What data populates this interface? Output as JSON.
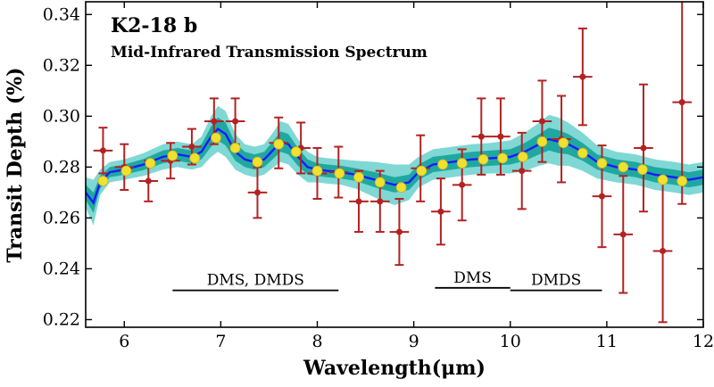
{
  "chart_data": {
    "type": "scatter",
    "title": "K2-18 b",
    "subtitle": "Mid-Infrared Transmission Spectrum",
    "xlabel": "Wavelength(μm)",
    "ylabel": "Transit Depth (%)",
    "xlim": [
      5.6,
      12.0
    ],
    "ylim": [
      0.217,
      0.345
    ],
    "x_ticks": [
      6,
      7,
      8,
      9,
      10,
      11,
      12
    ],
    "x_tick_labels": [
      "6",
      "7",
      "8",
      "9",
      "10",
      "11",
      "12"
    ],
    "y_ticks": [
      0.22,
      0.24,
      0.26,
      0.28,
      0.3,
      0.32,
      0.34
    ],
    "y_tick_labels": [
      "0.22",
      "0.24",
      "0.26",
      "0.28",
      "0.30",
      "0.32",
      "0.34"
    ],
    "grid": false,
    "colors": {
      "observed": "#b22222",
      "binned_model": "#f0e030",
      "model_line": "#1a1aff",
      "band_1sigma": "#20a8a0",
      "band_2sigma": "#7fd8d4"
    },
    "observed": [
      {
        "x": 5.78,
        "y": 0.2865,
        "xerr": 0.1,
        "yerr": 0.009
      },
      {
        "x": 6.0,
        "y": 0.28,
        "xerr": 0.1,
        "yerr": 0.009
      },
      {
        "x": 6.25,
        "y": 0.2745,
        "xerr": 0.1,
        "yerr": 0.008
      },
      {
        "x": 6.48,
        "y": 0.2825,
        "xerr": 0.1,
        "yerr": 0.007
      },
      {
        "x": 6.7,
        "y": 0.288,
        "xerr": 0.1,
        "yerr": 0.007
      },
      {
        "x": 6.93,
        "y": 0.298,
        "xerr": 0.1,
        "yerr": 0.009
      },
      {
        "x": 7.15,
        "y": 0.298,
        "xerr": 0.1,
        "yerr": 0.009
      },
      {
        "x": 7.38,
        "y": 0.27,
        "xerr": 0.1,
        "yerr": 0.01
      },
      {
        "x": 7.6,
        "y": 0.2895,
        "xerr": 0.1,
        "yerr": 0.01
      },
      {
        "x": 7.83,
        "y": 0.2875,
        "xerr": 0.1,
        "yerr": 0.01
      },
      {
        "x": 8.0,
        "y": 0.2775,
        "xerr": 0.1,
        "yerr": 0.01
      },
      {
        "x": 8.22,
        "y": 0.278,
        "xerr": 0.1,
        "yerr": 0.01
      },
      {
        "x": 8.43,
        "y": 0.2665,
        "xerr": 0.1,
        "yerr": 0.012
      },
      {
        "x": 8.65,
        "y": 0.2665,
        "xerr": 0.1,
        "yerr": 0.012
      },
      {
        "x": 8.85,
        "y": 0.2545,
        "xerr": 0.1,
        "yerr": 0.013
      },
      {
        "x": 9.07,
        "y": 0.2795,
        "xerr": 0.1,
        "yerr": 0.013
      },
      {
        "x": 9.28,
        "y": 0.2625,
        "xerr": 0.1,
        "yerr": 0.013
      },
      {
        "x": 9.5,
        "y": 0.273,
        "xerr": 0.1,
        "yerr": 0.014
      },
      {
        "x": 9.7,
        "y": 0.292,
        "xerr": 0.1,
        "yerr": 0.015
      },
      {
        "x": 9.9,
        "y": 0.292,
        "xerr": 0.1,
        "yerr": 0.015
      },
      {
        "x": 10.12,
        "y": 0.2785,
        "xerr": 0.1,
        "yerr": 0.015
      },
      {
        "x": 10.33,
        "y": 0.298,
        "xerr": 0.1,
        "yerr": 0.016
      },
      {
        "x": 10.53,
        "y": 0.291,
        "xerr": 0.1,
        "yerr": 0.017
      },
      {
        "x": 10.75,
        "y": 0.3155,
        "xerr": 0.1,
        "yerr": 0.019
      },
      {
        "x": 10.95,
        "y": 0.2685,
        "xerr": 0.1,
        "yerr": 0.02
      },
      {
        "x": 11.17,
        "y": 0.2535,
        "xerr": 0.1,
        "yerr": 0.023
      },
      {
        "x": 11.38,
        "y": 0.2875,
        "xerr": 0.1,
        "yerr": 0.025
      },
      {
        "x": 11.58,
        "y": 0.247,
        "xerr": 0.1,
        "yerr": 0.028
      },
      {
        "x": 11.78,
        "y": 0.3055,
        "xerr": 0.1,
        "yerr": 0.04
      }
    ],
    "binned_model": [
      {
        "x": 5.78,
        "y": 0.2745
      },
      {
        "x": 6.02,
        "y": 0.2785
      },
      {
        "x": 6.27,
        "y": 0.2815
      },
      {
        "x": 6.5,
        "y": 0.2845
      },
      {
        "x": 6.73,
        "y": 0.2835
      },
      {
        "x": 6.95,
        "y": 0.2915
      },
      {
        "x": 7.15,
        "y": 0.2875
      },
      {
        "x": 7.38,
        "y": 0.282
      },
      {
        "x": 7.6,
        "y": 0.289
      },
      {
        "x": 7.78,
        "y": 0.286
      },
      {
        "x": 8.0,
        "y": 0.2785
      },
      {
        "x": 8.23,
        "y": 0.2775
      },
      {
        "x": 8.43,
        "y": 0.276
      },
      {
        "x": 8.65,
        "y": 0.274
      },
      {
        "x": 8.87,
        "y": 0.272
      },
      {
        "x": 9.08,
        "y": 0.2785
      },
      {
        "x": 9.3,
        "y": 0.281
      },
      {
        "x": 9.5,
        "y": 0.2815
      },
      {
        "x": 9.72,
        "y": 0.283
      },
      {
        "x": 9.92,
        "y": 0.2835
      },
      {
        "x": 10.13,
        "y": 0.284
      },
      {
        "x": 10.33,
        "y": 0.29
      },
      {
        "x": 10.55,
        "y": 0.2895
      },
      {
        "x": 10.75,
        "y": 0.2855
      },
      {
        "x": 10.95,
        "y": 0.2815
      },
      {
        "x": 11.17,
        "y": 0.28
      },
      {
        "x": 11.37,
        "y": 0.279
      },
      {
        "x": 11.58,
        "y": 0.275
      },
      {
        "x": 11.78,
        "y": 0.2745
      }
    ],
    "model_curve": {
      "x": [
        5.6,
        5.68,
        5.75,
        5.85,
        6.0,
        6.2,
        6.4,
        6.55,
        6.7,
        6.8,
        6.9,
        6.97,
        7.05,
        7.15,
        7.25,
        7.35,
        7.45,
        7.55,
        7.62,
        7.7,
        7.8,
        7.9,
        8.0,
        8.1,
        8.25,
        8.4,
        8.6,
        8.8,
        8.95,
        9.05,
        9.2,
        9.4,
        9.6,
        9.8,
        10.0,
        10.15,
        10.3,
        10.4,
        10.5,
        10.6,
        10.75,
        10.9,
        11.1,
        11.3,
        11.5,
        11.7,
        11.85,
        12.0
      ],
      "y": [
        0.27,
        0.266,
        0.274,
        0.278,
        0.279,
        0.281,
        0.284,
        0.285,
        0.284,
        0.286,
        0.292,
        0.295,
        0.293,
        0.286,
        0.283,
        0.282,
        0.283,
        0.287,
        0.29,
        0.289,
        0.284,
        0.28,
        0.279,
        0.2785,
        0.278,
        0.277,
        0.275,
        0.273,
        0.274,
        0.278,
        0.281,
        0.282,
        0.283,
        0.2835,
        0.284,
        0.286,
        0.289,
        0.291,
        0.29,
        0.289,
        0.286,
        0.282,
        0.28,
        0.279,
        0.277,
        0.276,
        0.275,
        0.276
      ],
      "sigma1": [
        0.003,
        0.004,
        0.0025,
        0.002,
        0.002,
        0.0022,
        0.0025,
        0.0025,
        0.0025,
        0.003,
        0.004,
        0.0045,
        0.0045,
        0.0035,
        0.003,
        0.003,
        0.003,
        0.0035,
        0.004,
        0.004,
        0.0035,
        0.003,
        0.0025,
        0.0025,
        0.0025,
        0.0025,
        0.003,
        0.003,
        0.003,
        0.003,
        0.003,
        0.003,
        0.003,
        0.003,
        0.003,
        0.0035,
        0.004,
        0.0045,
        0.0045,
        0.004,
        0.0035,
        0.003,
        0.003,
        0.003,
        0.003,
        0.003,
        0.003,
        0.003
      ],
      "sigma2": [
        0.006,
        0.009,
        0.005,
        0.004,
        0.004,
        0.0045,
        0.005,
        0.005,
        0.005,
        0.006,
        0.008,
        0.009,
        0.009,
        0.007,
        0.006,
        0.006,
        0.006,
        0.007,
        0.008,
        0.008,
        0.007,
        0.006,
        0.005,
        0.005,
        0.005,
        0.0055,
        0.007,
        0.008,
        0.007,
        0.006,
        0.006,
        0.006,
        0.006,
        0.006,
        0.0065,
        0.0075,
        0.0085,
        0.0095,
        0.0095,
        0.0085,
        0.0075,
        0.0065,
        0.006,
        0.006,
        0.006,
        0.006,
        0.006,
        0.006
      ]
    },
    "annotations": [
      {
        "text": "DMS, DMDS",
        "x_start": 6.5,
        "x_end": 8.22,
        "y": 0.2315
      },
      {
        "text": "DMS",
        "x_start": 9.22,
        "x_end": 10.0,
        "y": 0.2325
      },
      {
        "text": "DMDS",
        "x_start": 10.0,
        "x_end": 10.95,
        "y": 0.2315
      }
    ]
  }
}
